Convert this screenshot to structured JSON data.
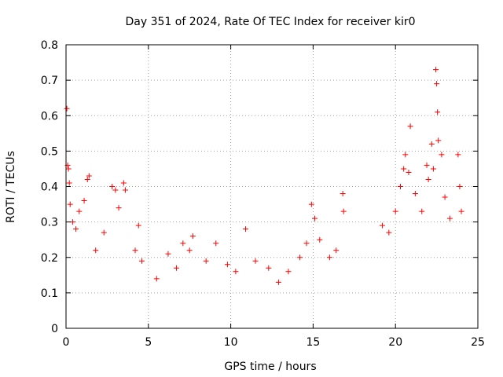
{
  "chart_data": {
    "type": "scatter",
    "title": "Day 351 of 2024, Rate Of TEC Index for receiver kir0",
    "xlabel": "GPS time / hours",
    "ylabel": "ROTI / TECUs",
    "xlim": [
      0,
      25
    ],
    "ylim": [
      0,
      0.8
    ],
    "xticks": [
      0,
      5,
      10,
      15,
      20,
      25
    ],
    "yticks": [
      0,
      0.1,
      0.2,
      0.3,
      0.4,
      0.5,
      0.6,
      0.7,
      0.8
    ],
    "xtick_labels": [
      "0",
      "5",
      "10",
      "15",
      "20",
      "25"
    ],
    "ytick_labels": [
      "0",
      "0.1",
      "0.2",
      "0.3",
      "0.4",
      "0.5",
      "0.6",
      "0.7",
      "0.8"
    ],
    "grid": true,
    "marker": "+",
    "marker_color": "#ff0000",
    "series": [
      {
        "points": [
          [
            0.05,
            0.62
          ],
          [
            0.1,
            0.46
          ],
          [
            0.15,
            0.45
          ],
          [
            0.2,
            0.41
          ],
          [
            0.25,
            0.35
          ],
          [
            0.4,
            0.3
          ],
          [
            0.6,
            0.28
          ],
          [
            0.8,
            0.33
          ],
          [
            1.1,
            0.36
          ],
          [
            1.3,
            0.42
          ],
          [
            1.4,
            0.43
          ],
          [
            1.8,
            0.22
          ],
          [
            2.3,
            0.27
          ],
          [
            2.8,
            0.4
          ],
          [
            3.0,
            0.39
          ],
          [
            3.2,
            0.34
          ],
          [
            3.5,
            0.41
          ],
          [
            3.6,
            0.39
          ],
          [
            4.2,
            0.22
          ],
          [
            4.4,
            0.29
          ],
          [
            4.6,
            0.19
          ],
          [
            5.5,
            0.14
          ],
          [
            6.2,
            0.21
          ],
          [
            6.7,
            0.17
          ],
          [
            7.1,
            0.24
          ],
          [
            7.5,
            0.22
          ],
          [
            7.7,
            0.26
          ],
          [
            8.5,
            0.19
          ],
          [
            9.1,
            0.24
          ],
          [
            9.8,
            0.18
          ],
          [
            10.3,
            0.16
          ],
          [
            10.9,
            0.28
          ],
          [
            11.5,
            0.19
          ],
          [
            12.3,
            0.17
          ],
          [
            12.9,
            0.13
          ],
          [
            13.5,
            0.16
          ],
          [
            14.2,
            0.2
          ],
          [
            14.6,
            0.24
          ],
          [
            14.9,
            0.35
          ],
          [
            15.1,
            0.31
          ],
          [
            15.4,
            0.25
          ],
          [
            16.0,
            0.2
          ],
          [
            16.4,
            0.22
          ],
          [
            16.8,
            0.38
          ],
          [
            16.85,
            0.33
          ],
          [
            19.2,
            0.29
          ],
          [
            19.6,
            0.27
          ],
          [
            20.0,
            0.33
          ],
          [
            20.3,
            0.4
          ],
          [
            20.5,
            0.45
          ],
          [
            20.6,
            0.49
          ],
          [
            20.8,
            0.44
          ],
          [
            20.9,
            0.57
          ],
          [
            21.2,
            0.38
          ],
          [
            21.6,
            0.33
          ],
          [
            21.9,
            0.46
          ],
          [
            22.0,
            0.42
          ],
          [
            22.2,
            0.52
          ],
          [
            22.3,
            0.45
          ],
          [
            22.45,
            0.73
          ],
          [
            22.5,
            0.69
          ],
          [
            22.55,
            0.61
          ],
          [
            22.6,
            0.53
          ],
          [
            22.8,
            0.49
          ],
          [
            23.0,
            0.37
          ],
          [
            23.3,
            0.31
          ],
          [
            23.8,
            0.49
          ],
          [
            23.9,
            0.4
          ],
          [
            24.0,
            0.33
          ]
        ]
      }
    ]
  }
}
